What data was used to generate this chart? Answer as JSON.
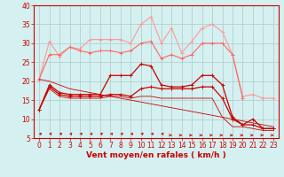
{
  "x": [
    0,
    1,
    2,
    3,
    4,
    5,
    6,
    7,
    8,
    9,
    10,
    11,
    12,
    13,
    14,
    15,
    16,
    17,
    18,
    19,
    20,
    21,
    22,
    23
  ],
  "series": [
    {
      "name": "rafales_max",
      "color": "#ff9999",
      "linewidth": 0.8,
      "marker": "+",
      "markersize": 3,
      "y": [
        20.5,
        30.5,
        26.5,
        29,
        28.5,
        31,
        31,
        31,
        31,
        30,
        35,
        37,
        30,
        34,
        27.5,
        30.5,
        34,
        35,
        33,
        27,
        16,
        16.5,
        15.5,
        15.5
      ]
    },
    {
      "name": "rafales_mean",
      "color": "#ff6666",
      "linewidth": 0.8,
      "marker": "+",
      "markersize": 3,
      "y": [
        20.5,
        27,
        27,
        29,
        28,
        27.5,
        28,
        28,
        27.5,
        28,
        30,
        30.5,
        26,
        27,
        26,
        27,
        30,
        30,
        30,
        27,
        15.5,
        null,
        null,
        null
      ]
    },
    {
      "name": "vent_max",
      "color": "#cc0000",
      "linewidth": 0.9,
      "marker": "+",
      "markersize": 3,
      "y": [
        12.5,
        19,
        17,
        16.5,
        16.5,
        16.5,
        16.5,
        21.5,
        21.5,
        21.5,
        24.5,
        24,
        19,
        18.5,
        18.5,
        19,
        21.5,
        21.5,
        19,
        10.5,
        8.5,
        10,
        7.5,
        7.5
      ]
    },
    {
      "name": "vent_mean",
      "color": "#cc0000",
      "linewidth": 0.9,
      "marker": "+",
      "markersize": 3,
      "y": [
        12.5,
        18.5,
        16.5,
        16,
        16,
        16,
        16,
        16.5,
        16.5,
        16,
        18,
        18.5,
        18,
        18,
        18,
        18,
        18.5,
        18.5,
        15.5,
        10,
        8.5,
        8.5,
        7.5,
        7.5
      ]
    },
    {
      "name": "vent_min_line1",
      "color": "#cc0000",
      "linewidth": 0.6,
      "marker": null,
      "markersize": 0,
      "y": [
        12.5,
        18,
        16,
        15.5,
        15.5,
        15.5,
        15.5,
        16,
        16,
        15.5,
        16,
        16,
        15.5,
        15.5,
        15.5,
        15.5,
        15.5,
        15.5,
        10.5,
        8,
        8,
        7.5,
        7,
        7
      ]
    },
    {
      "name": "vent_min_line2",
      "color": "#cc0000",
      "linewidth": 0.6,
      "marker": null,
      "markersize": 0,
      "y": [
        20.5,
        20,
        19,
        18,
        17.5,
        17,
        16.5,
        16,
        15.5,
        15,
        14.5,
        14,
        13.5,
        13,
        12.5,
        12,
        11.5,
        11,
        10.5,
        10,
        9.5,
        9,
        8.5,
        8
      ]
    }
  ],
  "xlim": [
    -0.5,
    23.5
  ],
  "ylim": [
    5,
    40
  ],
  "yticks": [
    5,
    10,
    15,
    20,
    25,
    30,
    35,
    40
  ],
  "xticks": [
    0,
    1,
    2,
    3,
    4,
    5,
    6,
    7,
    8,
    9,
    10,
    11,
    12,
    13,
    14,
    15,
    16,
    17,
    18,
    19,
    20,
    21,
    22,
    23
  ],
  "xlabel": "Vent moyen/en rafales ( km/h )",
  "background_color": "#d4f0f0",
  "grid_color": "#b0c8c8",
  "xlabel_color": "#cc0000",
  "xlabel_fontsize": 6.5,
  "tick_fontsize": 5.5,
  "arrow_transition": 13
}
